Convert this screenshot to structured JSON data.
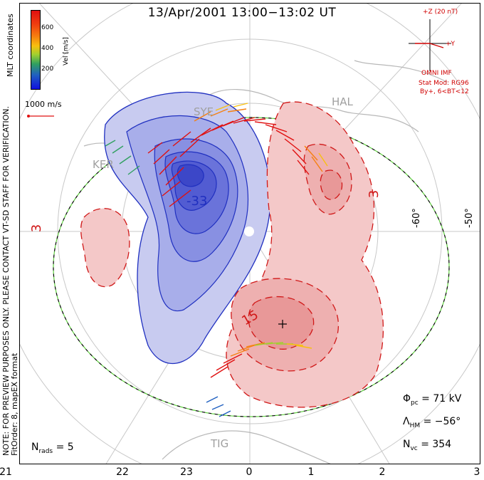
{
  "title": "13/Apr/2001 13:00−13:02 UT",
  "colorbar": {
    "label": "Vel [m/s]",
    "ticks": [
      "600",
      "400",
      "200"
    ],
    "colors": [
      "#e01010",
      "#f68010",
      "#f8c010",
      "#a0d030",
      "#30a060",
      "#2060c0",
      "#1010e0"
    ]
  },
  "coords_label": "MLT coordinates",
  "scale_vector": "1000 m/s",
  "imf": {
    "z_label": "+Z (20 nT)",
    "y_label": "+Y",
    "source": "OMNI IMF",
    "model": "Stat Mod: RG96",
    "conditions": "By+, 6<BT<12"
  },
  "notes": {
    "preview": "NOTE: FOR PREVIEW PURPOSES ONLY. PLEASE CONTACT VT-SD STAFF FOR VERIFICATION.",
    "fit": "FitOrder: 8,  mapEX format"
  },
  "latitude_labels": [
    "-60°",
    "-50°"
  ],
  "stations": [
    "SYE",
    "HAL",
    "KER",
    "TIG"
  ],
  "contour_labels": [
    "-33",
    "3",
    "3",
    "15"
  ],
  "stats": {
    "phi_pc_symbol": "Φ",
    "phi_pc_sub": "pc",
    "phi_pc_value": "= 71 kV",
    "lambda_hm_symbol": "Λ",
    "lambda_hm_sub": "HM",
    "lambda_hm_value": "= −56°",
    "n_vc_symbol": "N",
    "n_vc_sub": "vc",
    "n_vc_value": "= 354",
    "n_rads_symbol": "N",
    "n_rads_sub": "rads",
    "n_rads_value": "= 5"
  },
  "mlt_labels": [
    "21",
    "22",
    "23",
    "0",
    "1",
    "2",
    "3"
  ],
  "palette": {
    "negative": "#2030c0",
    "negative_fill": "#c8cbf0",
    "positive": "#d01818",
    "positive_fill": "#f4c8c8",
    "boundary_green": "#60d040",
    "coast": "#b8b8b8"
  }
}
